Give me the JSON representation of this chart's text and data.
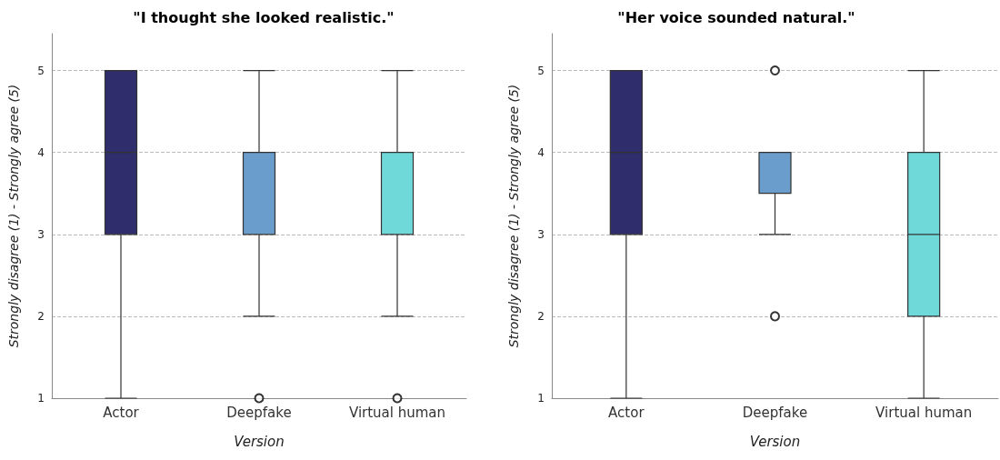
{
  "chart_data": [
    {
      "type": "box",
      "title": "\"I thought she looked realistic.\"",
      "xlabel": "Version",
      "ylabel": "Strongly disagree (1) - Strongly agree (5)",
      "categories": [
        "Actor",
        "Deepfake",
        "Virtual human"
      ],
      "colors": [
        "#2f2d6b",
        "#6b9dcc",
        "#6fd8d8"
      ],
      "boxes": [
        {
          "low": 1,
          "q1": 3,
          "median": 4,
          "q3": 5,
          "high": 5
        },
        {
          "low": 2,
          "q1": 3,
          "median": 4,
          "q3": 4,
          "high": 5,
          "outliers": [
            1
          ]
        },
        {
          "low": 2,
          "q1": 3,
          "median": 3,
          "q3": 4,
          "high": 5,
          "outliers": [
            1
          ]
        }
      ],
      "ylim": [
        1,
        5.45
      ],
      "yticks": [
        1,
        2,
        3,
        4,
        5
      ],
      "grid": "y"
    },
    {
      "type": "box",
      "title": "\"Her voice sounded natural.\"",
      "xlabel": "Version",
      "ylabel": "Strongly disagree (1) - Strongly agree (5)",
      "categories": [
        "Actor",
        "Deepfake",
        "Virtual human"
      ],
      "colors": [
        "#2f2d6b",
        "#6b9dcc",
        "#6fd8d8"
      ],
      "boxes": [
        {
          "low": 1,
          "q1": 3,
          "median": 4,
          "q3": 5,
          "high": 5
        },
        {
          "low": 3,
          "q1": 3.5,
          "median": 4,
          "q3": 4,
          "high": 4,
          "outliers": [
            5,
            2
          ]
        },
        {
          "low": 1,
          "q1": 2,
          "median": 3,
          "q3": 4,
          "high": 5
        }
      ],
      "ylim": [
        1,
        5.45
      ],
      "yticks": [
        1,
        2,
        3,
        4,
        5
      ],
      "grid": "y"
    }
  ]
}
